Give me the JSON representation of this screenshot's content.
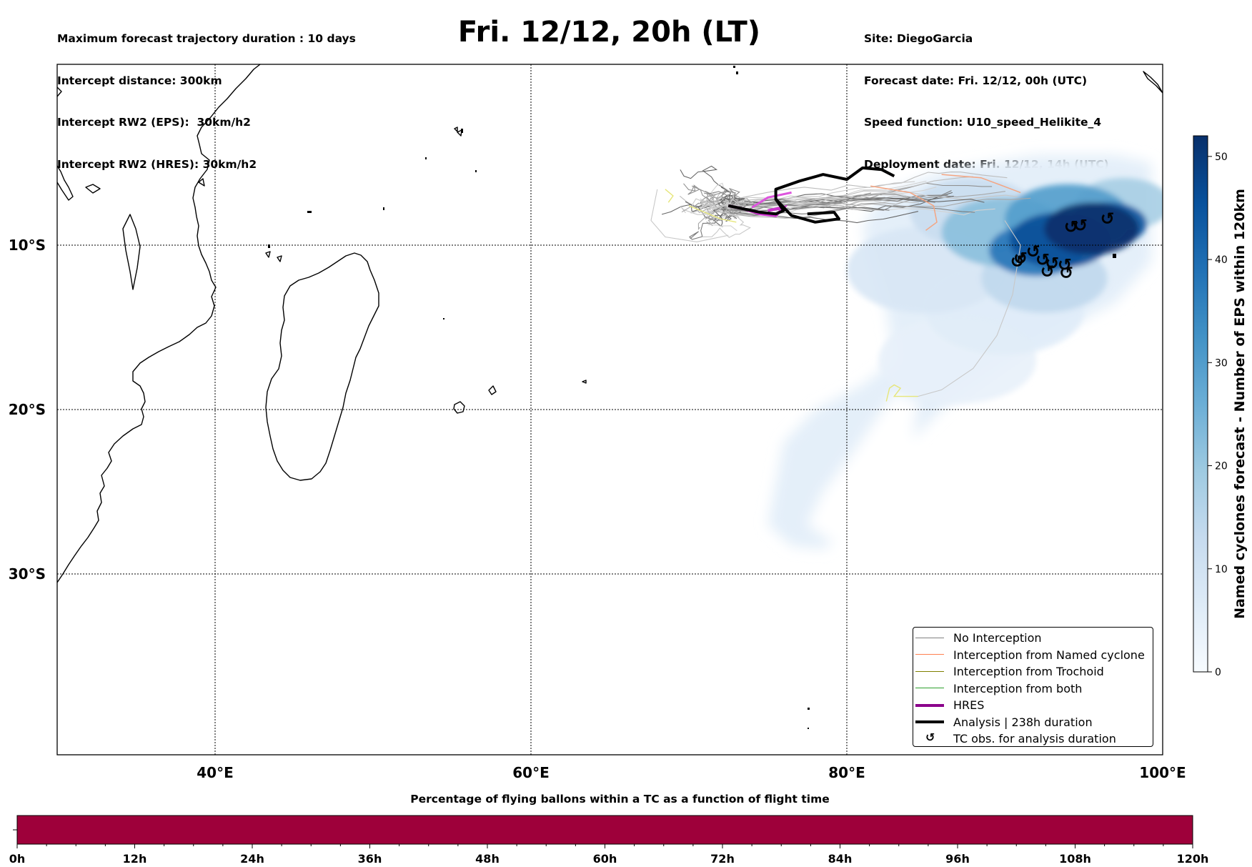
{
  "header": {
    "left_lines": [
      "Maximum forecast trajectory duration : 10 days",
      "Intercept distance: 300km",
      "Intercept RW2 (EPS):  30km/h2",
      "Intercept RW2 (HRES): 30km/h2"
    ],
    "title": "Fri. 12/12, 20h (LT)",
    "right_lines": [
      "Site: DiegoGarcia",
      "Forecast date: Fri. 12/12, 00h (UTC)",
      "Speed function: U10_speed_Helikite_4",
      "Deployment date: Fri. 12/12, 14h (UTC)"
    ]
  },
  "map": {
    "lon_range": [
      30,
      100
    ],
    "lat_range": [
      -41,
      1
    ],
    "gridlines": true,
    "lon_ticks": [
      {
        "value": 40,
        "label": "40°E"
      },
      {
        "value": 60,
        "label": "60°E"
      },
      {
        "value": 80,
        "label": "80°E"
      },
      {
        "value": 100,
        "label": "100°E"
      }
    ],
    "lat_ticks": [
      {
        "value": -10,
        "label": "10°S"
      },
      {
        "value": -20,
        "label": "20°S"
      },
      {
        "value": -30,
        "label": "30°S"
      }
    ]
  },
  "legend": {
    "placement": "bottom-right",
    "entries": [
      {
        "label": "No Interception",
        "color": "#7f7f7f",
        "style": "thin-line"
      },
      {
        "label": "Interception from Named cyclone",
        "color": "#ff7f50",
        "style": "thin-line"
      },
      {
        "label": "Interception from Trochoid",
        "color": "#808000",
        "style": "thin-line"
      },
      {
        "label": "Interception from both",
        "color": "#2ca02c",
        "style": "thin-line"
      },
      {
        "label": "HRES",
        "color": "#8b008b",
        "style": "thick-line"
      },
      {
        "label": "Analysis | 238h duration",
        "color": "#000000",
        "style": "thick-line"
      },
      {
        "label": "TC obs. for analysis duration",
        "color": "#000000",
        "style": "cyclone-marker"
      }
    ]
  },
  "colorbar": {
    "title": "Named cyclones forecast - Number of EPS within 120km",
    "min": 0,
    "max": 52,
    "ticks": [
      0,
      10,
      20,
      30,
      40,
      50
    ],
    "colors": [
      "#f7fbff",
      "#deebf7",
      "#c6dbef",
      "#9ecae1",
      "#6baed6",
      "#4292c6",
      "#2171b5",
      "#08519c",
      "#08306b"
    ]
  },
  "flight_time_bar": {
    "title": "Percentage of flying ballons within a TC as a function of flight time",
    "color": "#9e003a",
    "ticks": [
      "0h",
      "12h",
      "24h",
      "36h",
      "48h",
      "60h",
      "72h",
      "84h",
      "96h",
      "108h",
      "120h"
    ]
  },
  "density": {
    "blobs": [
      {
        "lon": 95.5,
        "lat": -9.0,
        "r": 3.0,
        "value": 52
      },
      {
        "lon": 93.5,
        "lat": -9.7,
        "r": 3.2,
        "value": 46
      },
      {
        "lon": 96.5,
        "lat": -8.7,
        "r": 2.5,
        "value": 44
      },
      {
        "lon": 92.0,
        "lat": -10.3,
        "r": 3.0,
        "value": 38
      },
      {
        "lon": 94.0,
        "lat": -8.4,
        "r": 4.0,
        "value": 30
      },
      {
        "lon": 90.0,
        "lat": -9.2,
        "r": 4.0,
        "value": 22
      },
      {
        "lon": 97.5,
        "lat": -7.5,
        "r": 3.0,
        "value": 18
      },
      {
        "lon": 92.5,
        "lat": -12.0,
        "r": 4.0,
        "value": 14
      },
      {
        "lon": 88.0,
        "lat": -8.0,
        "r": 4.0,
        "value": 12
      },
      {
        "lon": 85.0,
        "lat": -11.5,
        "r": 5.0,
        "value": 8
      },
      {
        "lon": 90.0,
        "lat": -14.0,
        "r": 5.0,
        "value": 6
      },
      {
        "lon": 87.0,
        "lat": -17.0,
        "r": 5.0,
        "value": 4
      }
    ],
    "base_polygon": [
      [
        82,
        -7
      ],
      [
        86,
        -5.5
      ],
      [
        92,
        -4.5
      ],
      [
        97,
        -4.5
      ],
      [
        99.3,
        -5
      ],
      [
        99.3,
        -11
      ],
      [
        97,
        -13.5
      ],
      [
        95,
        -14.5
      ],
      [
        92,
        -16
      ],
      [
        89,
        -18
      ],
      [
        86,
        -20
      ],
      [
        84,
        -22
      ],
      [
        82,
        -25
      ],
      [
        80,
        -27.5
      ],
      [
        78.5,
        -28.5
      ],
      [
        76.5,
        -28.3
      ],
      [
        75,
        -27
      ],
      [
        76,
        -22
      ],
      [
        78,
        -20
      ],
      [
        81,
        -18.5
      ],
      [
        83,
        -17
      ],
      [
        82.5,
        -14
      ],
      [
        81.5,
        -11
      ],
      [
        81,
        -9
      ]
    ],
    "tongue_polygon": [
      [
        83,
        -19
      ],
      [
        84.5,
        -19.5
      ],
      [
        84,
        -23
      ],
      [
        82.5,
        -25.5
      ],
      [
        81,
        -27.5
      ],
      [
        79,
        -28
      ],
      [
        77.5,
        -27
      ],
      [
        78.5,
        -25
      ],
      [
        80.5,
        -22.5
      ]
    ]
  },
  "tc_obs": [
    {
      "lon": 96.5,
      "lat": -8.4
    },
    {
      "lon": 94.2,
      "lat": -8.9
    },
    {
      "lon": 94.8,
      "lat": -8.8
    },
    {
      "lon": 91.8,
      "lat": -10.4
    },
    {
      "lon": 92.4,
      "lat": -10.9
    },
    {
      "lon": 91.0,
      "lat": -10.8
    },
    {
      "lon": 90.8,
      "lat": -11.0
    },
    {
      "lon": 93.0,
      "lat": -11.1
    },
    {
      "lon": 93.8,
      "lat": -11.2
    },
    {
      "lon": 92.7,
      "lat": -11.6
    },
    {
      "lon": 93.9,
      "lat": -11.7
    }
  ],
  "analysis_track": [
    [
      72.5,
      -7.6
    ],
    [
      74.5,
      -8.0
    ],
    [
      75.5,
      -8.1
    ],
    [
      76.0,
      -7.9
    ],
    [
      75.5,
      -7.2
    ],
    [
      75.5,
      -6.6
    ],
    [
      77.0,
      -6.1
    ],
    [
      78.5,
      -5.7
    ],
    [
      80,
      -6.0
    ],
    [
      81,
      -5.3
    ],
    [
      82.2,
      -5.4
    ],
    [
      83,
      -5.8
    ]
  ],
  "analysis_loop": [
    [
      75.5,
      -7.2
    ],
    [
      76.5,
      -8.2
    ],
    [
      78,
      -8.6
    ],
    [
      79.5,
      -8.4
    ],
    [
      79.2,
      -8.0
    ],
    [
      77.5,
      -8.1
    ]
  ],
  "hres_track": [
    [
      72.5,
      -7.6
    ],
    [
      73.5,
      -7.8
    ],
    [
      74.5,
      -8.1
    ],
    [
      75.5,
      -8.2
    ],
    [
      76,
      -7.7
    ],
    [
      75,
      -7.9
    ]
  ],
  "hres_branch": [
    [
      74,
      -7.7
    ],
    [
      75,
      -7.1
    ],
    [
      76.5,
      -6.8
    ]
  ],
  "trochoid_tracks": [
    [
      [
        82.5,
        -19.5
      ],
      [
        82.7,
        -18.7
      ],
      [
        83,
        -18.5
      ],
      [
        83.4,
        -18.7
      ],
      [
        83.0,
        -19.2
      ],
      [
        84.5,
        -19.2
      ]
    ],
    [
      [
        68.5,
        -6.6
      ],
      [
        69,
        -7.0
      ],
      [
        68.7,
        -7.4
      ]
    ],
    [
      [
        70,
        -7.6
      ],
      [
        71,
        -8.0
      ],
      [
        72,
        -8.4
      ],
      [
        73,
        -8.6
      ]
    ]
  ],
  "named_tracks": [
    [
      [
        81.5,
        -6.4
      ],
      [
        84,
        -6.8
      ],
      [
        85.5,
        -7.6
      ],
      [
        85.7,
        -8.6
      ],
      [
        85,
        -9.1
      ]
    ],
    [
      [
        86,
        -5.7
      ],
      [
        88.5,
        -5.9
      ],
      [
        91,
        -6.8
      ]
    ]
  ]
}
